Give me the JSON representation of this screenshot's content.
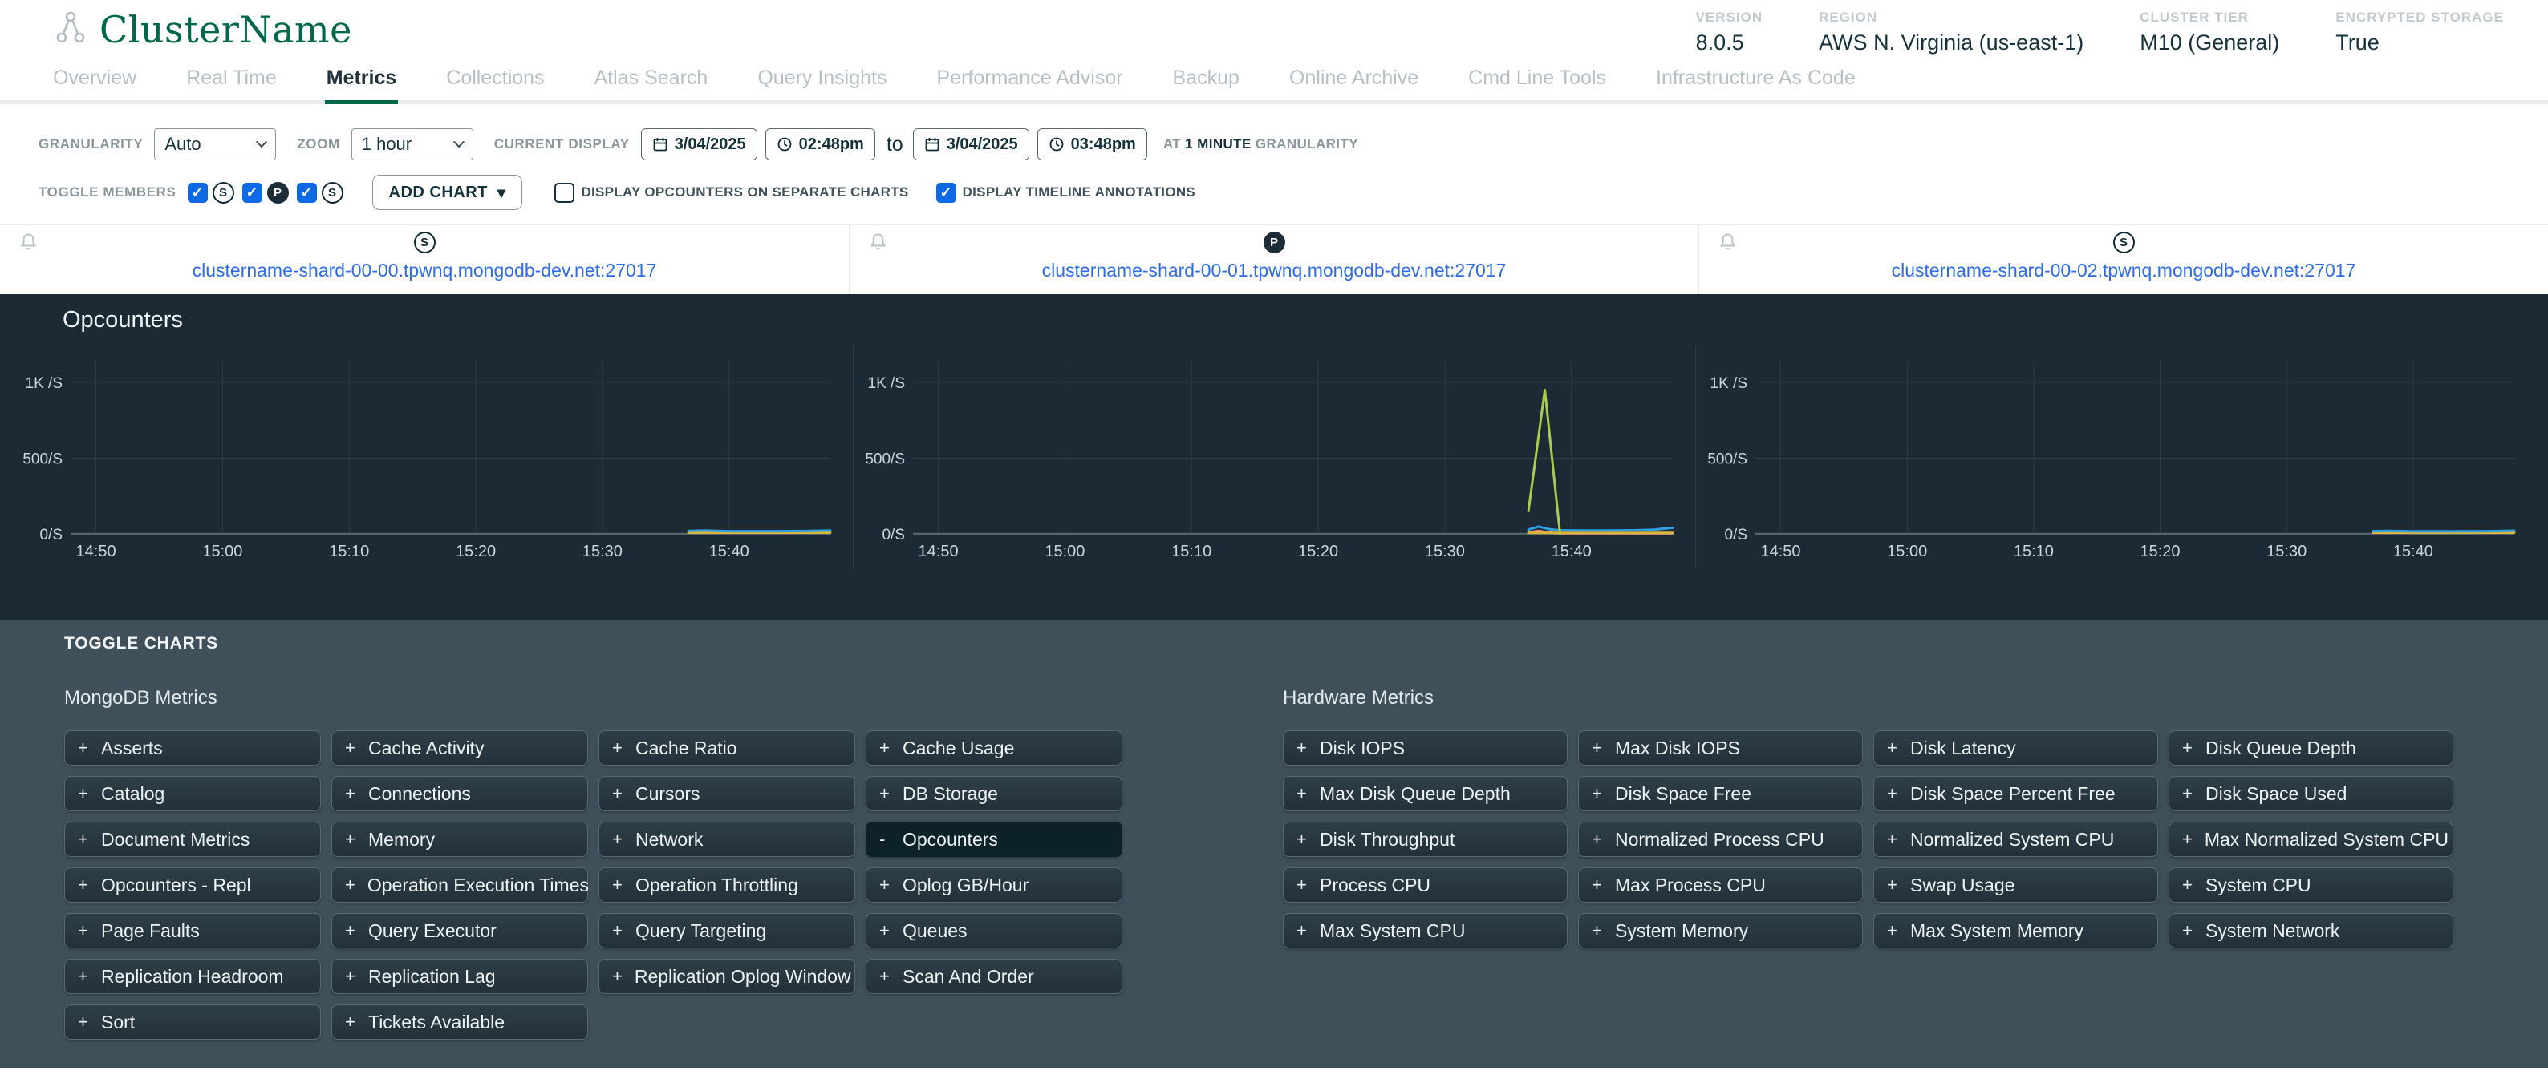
{
  "header": {
    "cluster_name": "ClusterName",
    "info": [
      {
        "label": "VERSION",
        "value": "8.0.5"
      },
      {
        "label": "REGION",
        "value": "AWS N. Virginia (us-east-1)"
      },
      {
        "label": "CLUSTER TIER",
        "value": "M10 (General)"
      },
      {
        "label": "ENCRYPTED STORAGE",
        "value": "True"
      }
    ]
  },
  "tabs": {
    "items": [
      "Overview",
      "Real Time",
      "Metrics",
      "Collections",
      "Atlas Search",
      "Query Insights",
      "Performance Advisor",
      "Backup",
      "Online Archive",
      "Cmd Line Tools",
      "Infrastructure As Code"
    ],
    "active": "Metrics"
  },
  "controls": {
    "granularity_label": "GRANULARITY",
    "granularity_value": "Auto",
    "zoom_label": "ZOOM",
    "zoom_value": "1 hour",
    "current_display_label": "CURRENT DISPLAY",
    "from_date": "3/04/2025",
    "from_time": "02:48pm",
    "to_word": "to",
    "to_date": "3/04/2025",
    "to_time": "03:48pm",
    "at_pre": "AT ",
    "at_bold": "1 MINUTE",
    "at_post": " GRANULARITY",
    "toggle_members_label": "TOGGLE MEMBERS",
    "members": [
      {
        "role": "S",
        "checked": true
      },
      {
        "role": "P",
        "checked": true
      },
      {
        "role": "S",
        "checked": true
      }
    ],
    "add_chart_label": "ADD CHART",
    "add_chart_caret": "▾",
    "checkboxes": [
      {
        "label": "DISPLAY OPCOUNTERS ON SEPARATE CHARTS",
        "checked": false
      },
      {
        "label": "DISPLAY TIMELINE ANNOTATIONS",
        "checked": true
      }
    ]
  },
  "shards": [
    {
      "role": "S",
      "host": "clustername-shard-00-00.tpwnq.mongodb-dev.net:27017"
    },
    {
      "role": "P",
      "host": "clustername-shard-00-01.tpwnq.mongodb-dev.net:27017"
    },
    {
      "role": "S",
      "host": "clustername-shard-00-02.tpwnq.mongodb-dev.net:27017"
    }
  ],
  "charts_panel": {
    "title": "Opcounters"
  },
  "chart_data": [
    {
      "type": "line",
      "title": "Opcounters",
      "host": "clustername-shard-00-00.tpwnq.mongodb-dev.net:27017",
      "ylim": [
        0,
        1100
      ],
      "yticks": [
        {
          "v": 1000,
          "label": "1K /S"
        },
        {
          "v": 500,
          "label": "500/S"
        },
        {
          "v": 0,
          "label": "0/S"
        }
      ],
      "x_range_minutes": [
        0,
        60
      ],
      "xticks": [
        {
          "m": 2,
          "label": "14:50"
        },
        {
          "m": 12,
          "label": "15:00"
        },
        {
          "m": 22,
          "label": "15:10"
        },
        {
          "m": 32,
          "label": "15:20"
        },
        {
          "m": 42,
          "label": "15:30"
        },
        {
          "m": 52,
          "label": "15:40"
        }
      ],
      "grid": true,
      "legend": "none",
      "series": [
        {
          "name": "line-yellow",
          "color": "#d9b53c",
          "points": [
            [
              48.8,
              8
            ],
            [
              60,
              8
            ]
          ]
        },
        {
          "name": "line-blue",
          "color": "#2f9ee2",
          "points": [
            [
              48.8,
              20
            ],
            [
              50,
              22
            ],
            [
              52,
              18
            ],
            [
              54,
              18
            ],
            [
              56,
              18
            ],
            [
              58,
              19
            ],
            [
              60,
              22
            ]
          ]
        }
      ]
    },
    {
      "type": "line",
      "title": "Opcounters",
      "host": "clustername-shard-00-01.tpwnq.mongodb-dev.net:27017",
      "ylim": [
        0,
        1100
      ],
      "yticks": [
        {
          "v": 1000,
          "label": "1K /S"
        },
        {
          "v": 500,
          "label": "500/S"
        },
        {
          "v": 0,
          "label": "0/S"
        }
      ],
      "x_range_minutes": [
        0,
        60
      ],
      "xticks": [
        {
          "m": 2,
          "label": "14:50"
        },
        {
          "m": 12,
          "label": "15:00"
        },
        {
          "m": 22,
          "label": "15:10"
        },
        {
          "m": 32,
          "label": "15:20"
        },
        {
          "m": 42,
          "label": "15:30"
        },
        {
          "m": 52,
          "label": "15:40"
        }
      ],
      "grid": true,
      "legend": "none",
      "series": [
        {
          "name": "line-salmon",
          "color": "#f08e8e",
          "points": [
            [
              48.6,
              10
            ],
            [
              49.4,
              20
            ],
            [
              50.3,
              8
            ],
            [
              51,
              4
            ],
            [
              60,
              4
            ]
          ]
        },
        {
          "name": "line-yellow",
          "color": "#d9b53c",
          "points": [
            [
              48.6,
              7
            ],
            [
              60,
              7
            ]
          ]
        },
        {
          "name": "line-blue",
          "color": "#2f9ee2",
          "points": [
            [
              48.6,
              28
            ],
            [
              49.4,
              48
            ],
            [
              50.3,
              30
            ],
            [
              51,
              24
            ],
            [
              53,
              22
            ],
            [
              55,
              22
            ],
            [
              57,
              24
            ],
            [
              58.5,
              28
            ],
            [
              60,
              40
            ]
          ]
        },
        {
          "name": "line-green",
          "color": "#a8cc4e",
          "points": [
            [
              48.6,
              150
            ],
            [
              49.9,
              950
            ],
            [
              51.1,
              0
            ]
          ]
        }
      ]
    },
    {
      "type": "line",
      "title": "Opcounters",
      "host": "clustername-shard-00-02.tpwnq.mongodb-dev.net:27017",
      "ylim": [
        0,
        1100
      ],
      "yticks": [
        {
          "v": 1000,
          "label": "1K /S"
        },
        {
          "v": 500,
          "label": "500/S"
        },
        {
          "v": 0,
          "label": "0/S"
        }
      ],
      "x_range_minutes": [
        0,
        60
      ],
      "xticks": [
        {
          "m": 2,
          "label": "14:50"
        },
        {
          "m": 12,
          "label": "15:00"
        },
        {
          "m": 22,
          "label": "15:10"
        },
        {
          "m": 32,
          "label": "15:20"
        },
        {
          "m": 42,
          "label": "15:30"
        },
        {
          "m": 52,
          "label": "15:40"
        }
      ],
      "grid": true,
      "legend": "none",
      "series": [
        {
          "name": "line-yellow",
          "color": "#d9b53c",
          "points": [
            [
              48.8,
              8
            ],
            [
              60,
              8
            ]
          ]
        },
        {
          "name": "line-blue",
          "color": "#2f9ee2",
          "points": [
            [
              48.8,
              18
            ],
            [
              50,
              20
            ],
            [
              52,
              17
            ],
            [
              55,
              17
            ],
            [
              58,
              18
            ],
            [
              60,
              21
            ]
          ]
        }
      ]
    }
  ],
  "toggle_charts": {
    "title": "TOGGLE CHARTS",
    "groups": [
      {
        "title": "MongoDB Metrics",
        "buttons": [
          {
            "label": "Asserts",
            "state": "+"
          },
          {
            "label": "Cache Activity",
            "state": "+"
          },
          {
            "label": "Cache Ratio",
            "state": "+"
          },
          {
            "label": "Cache Usage",
            "state": "+"
          },
          {
            "label": "Catalog",
            "state": "+"
          },
          {
            "label": "Connections",
            "state": "+"
          },
          {
            "label": "Cursors",
            "state": "+"
          },
          {
            "label": "DB Storage",
            "state": "+"
          },
          {
            "label": "Document Metrics",
            "state": "+"
          },
          {
            "label": "Memory",
            "state": "+"
          },
          {
            "label": "Network",
            "state": "+"
          },
          {
            "label": "Opcounters",
            "state": "-",
            "active": true
          },
          {
            "label": "Opcounters - Repl",
            "state": "+"
          },
          {
            "label": "Operation Execution Times",
            "state": "+"
          },
          {
            "label": "Operation Throttling",
            "state": "+"
          },
          {
            "label": "Oplog GB/Hour",
            "state": "+"
          },
          {
            "label": "Page Faults",
            "state": "+"
          },
          {
            "label": "Query Executor",
            "state": "+"
          },
          {
            "label": "Query Targeting",
            "state": "+"
          },
          {
            "label": "Queues",
            "state": "+"
          },
          {
            "label": "Replication Headroom",
            "state": "+"
          },
          {
            "label": "Replication Lag",
            "state": "+"
          },
          {
            "label": "Replication Oplog Window",
            "state": "+"
          },
          {
            "label": "Scan And Order",
            "state": "+"
          },
          {
            "label": "Sort",
            "state": "+"
          },
          {
            "label": "Tickets Available",
            "state": "+"
          }
        ]
      },
      {
        "title": "Hardware Metrics",
        "buttons": [
          {
            "label": "Disk IOPS",
            "state": "+"
          },
          {
            "label": "Max Disk IOPS",
            "state": "+"
          },
          {
            "label": "Disk Latency",
            "state": "+"
          },
          {
            "label": "Disk Queue Depth",
            "state": "+"
          },
          {
            "label": "Max Disk Queue Depth",
            "state": "+"
          },
          {
            "label": "Disk Space Free",
            "state": "+"
          },
          {
            "label": "Disk Space Percent Free",
            "state": "+"
          },
          {
            "label": "Disk Space Used",
            "state": "+"
          },
          {
            "label": "Disk Throughput",
            "state": "+"
          },
          {
            "label": "Normalized Process CPU",
            "state": "+"
          },
          {
            "label": "Normalized System CPU",
            "state": "+"
          },
          {
            "label": "Max Normalized System CPU",
            "state": "+"
          },
          {
            "label": "Process CPU",
            "state": "+"
          },
          {
            "label": "Max Process CPU",
            "state": "+"
          },
          {
            "label": "Swap Usage",
            "state": "+"
          },
          {
            "label": "System CPU",
            "state": "+"
          },
          {
            "label": "Max System CPU",
            "state": "+"
          },
          {
            "label": "System Memory",
            "state": "+"
          },
          {
            "label": "Max System Memory",
            "state": "+"
          },
          {
            "label": "System Network",
            "state": "+"
          }
        ]
      }
    ]
  },
  "colors": {
    "brand_green": "#00684A",
    "link_blue": "#2c6ce8",
    "checkbox_blue": "#0d6ae4",
    "dark_panel_bg": "#1c2a36",
    "slate_panel_bg": "#40505a",
    "active_metric_btn": "#0c2128",
    "series_blue": "#2f9ee2",
    "series_green": "#a8cc4e",
    "series_yellow": "#d9b53c",
    "series_salmon": "#f08e8e"
  }
}
